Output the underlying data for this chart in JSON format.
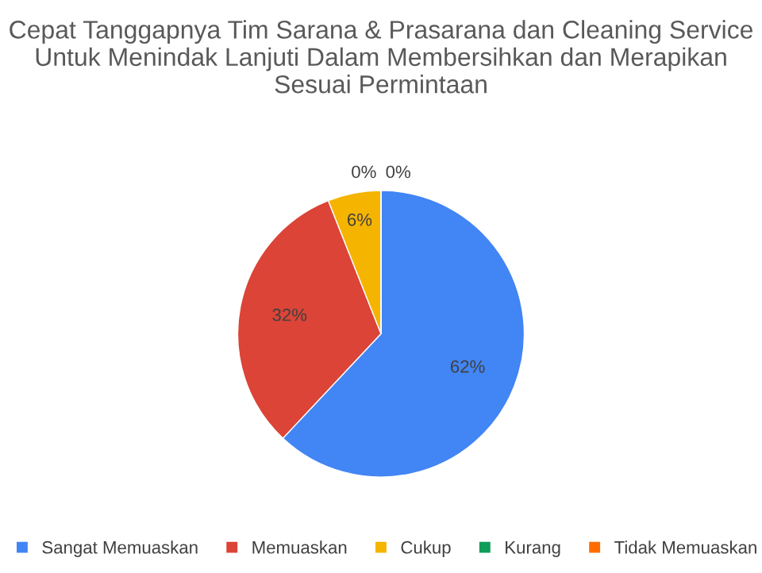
{
  "chart_data": {
    "type": "pie",
    "title": "Cepat Tanggapnya Tim Sarana & Prasarana dan Cleaning Service Untuk Menindak Lanjuti Dalam Membersihkan dan Merapikan Sesuai Permintaan",
    "categories": [
      "Sangat Memuaskan",
      "Memuaskan",
      "Cukup",
      "Kurang",
      "Tidak Memuaskan"
    ],
    "values": [
      62,
      32,
      6,
      0,
      0
    ],
    "colors": [
      "#4285f4",
      "#db4437",
      "#f4b400",
      "#0f9d58",
      "#ff6d00"
    ],
    "value_labels": [
      "62%",
      "32%",
      "6%",
      "0%",
      "0%"
    ],
    "legend": "bottom"
  }
}
